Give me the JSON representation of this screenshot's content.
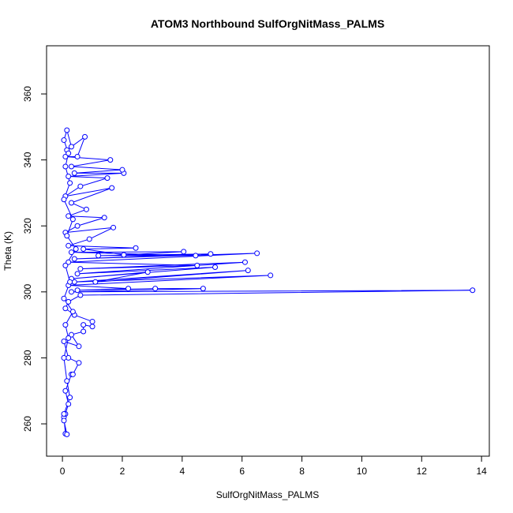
{
  "chart_data": {
    "type": "line",
    "title": "ATOM3 Northbound SulfOrgNitMass_PALMS",
    "x_label": "SulfOrgNitMass_PALMS",
    "y_label": "Theta (K)",
    "x": [
      0.05,
      0.1,
      0.15,
      0.05,
      0.1,
      0.2,
      0.1,
      0.3,
      0.35,
      0.55,
      0.2,
      0.05,
      0.55,
      0.3,
      0.7,
      0.7,
      1,
      1,
      0.4,
      0.1,
      0.2,
      0.6,
      13.7,
      0.3,
      4.7,
      3.1,
      0.5,
      2.2,
      0.2,
      6.95,
      0.4,
      6.2,
      1.1,
      2.85,
      0.3,
      5.1,
      0.5,
      6.1,
      0.6,
      4.5,
      0.2,
      6.5,
      0.4,
      4.95,
      1.2,
      4.45,
      0.3,
      4.05,
      2.05,
      0.7,
      2.45,
      0.2,
      0.9,
      1.7,
      0.1,
      0.5,
      1.4,
      0.2,
      0.8,
      0.3,
      1.65,
      0.1,
      0.6,
      1.5,
      0.2,
      2.05,
      0.4,
      2,
      0.3,
      1.6,
      0.1,
      0.5,
      0.75,
      0.15,
      0.3,
      0.15,
      0.05,
      0.2,
      0.1,
      0.25,
      0.05,
      0.35,
      0.15,
      0.45,
      0.1,
      0.25,
      0.05,
      0.35,
      0.1,
      0.2,
      0.05,
      0.15,
      0.25,
      0.05
    ],
    "series": [
      {
        "color": "#0000ff",
        "values": [
          262,
          257,
          256.8,
          261,
          263,
          266,
          270,
          275,
          275,
          278.5,
          280,
          285,
          283.5,
          287,
          288,
          290,
          289.5,
          291,
          293,
          295,
          297,
          299,
          300.5,
          300,
          301,
          301,
          300.5,
          301,
          302,
          305,
          303,
          306.5,
          303,
          306,
          304,
          307.5,
          305.5,
          309,
          307,
          308,
          309,
          311.7,
          310,
          311.5,
          311,
          311,
          312,
          312.2,
          311.2,
          313,
          313.3,
          314,
          316,
          319.5,
          318,
          320,
          322.5,
          323,
          325,
          327,
          331.5,
          329,
          332,
          334.5,
          335,
          336,
          336,
          337,
          338,
          340,
          341,
          341,
          347,
          343,
          344,
          349,
          346,
          342,
          338,
          333,
          328,
          322,
          317,
          313,
          308,
          303,
          298,
          294,
          290,
          286,
          280,
          273,
          268,
          263
        ]
      }
    ],
    "xlim": [
      -0.53,
      14.26
    ],
    "ylim": [
      250.2,
      374.6
    ],
    "xticks": [
      0,
      2,
      4,
      6,
      8,
      10,
      12,
      14
    ],
    "yticks": [
      260,
      280,
      300,
      320,
      340,
      360
    ]
  }
}
